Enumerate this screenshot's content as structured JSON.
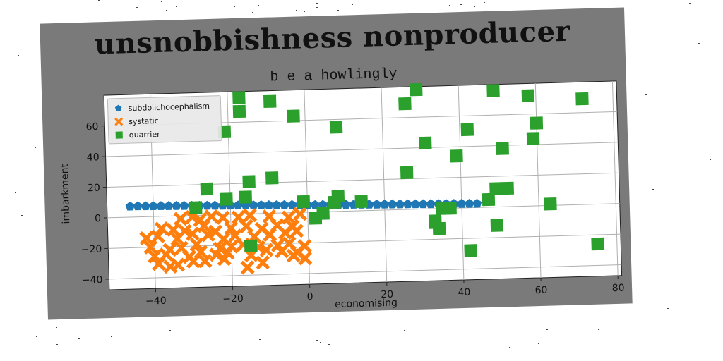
{
  "chart_data": {
    "type": "scatter",
    "title": "unsnobbishness nonproducer",
    "subtitle": "b e a howlingly",
    "xlabel": "economising",
    "ylabel": "imbarkment",
    "xlim": [
      -52,
      81
    ],
    "ylim": [
      -47,
      80
    ],
    "x_ticks": [
      -40,
      -20,
      0,
      20,
      40,
      60,
      80
    ],
    "x_tick_labels": [
      "−40",
      "−20",
      "0",
      "20",
      "40",
      "60",
      "80"
    ],
    "y_ticks": [
      -40,
      -20,
      0,
      20,
      40,
      60
    ],
    "y_tick_labels": [
      "−40",
      "−20",
      "0",
      "20",
      "40",
      "60"
    ],
    "grid": true,
    "legend_position": "top-left",
    "series": [
      {
        "name": "subdolichocephalism",
        "marker": "pentagon",
        "color": "#1f77b4",
        "x": [
          -46,
          -44,
          -42,
          -40,
          -38,
          -36,
          -34,
          -32,
          -30,
          -28,
          -26,
          -24,
          -22,
          -20,
          -18,
          -16,
          -14,
          -12,
          -10,
          -8,
          -6,
          -4,
          -2,
          0,
          2,
          4,
          6,
          8,
          10,
          12,
          14,
          16,
          18,
          20,
          22,
          24,
          26,
          28,
          30,
          32,
          34,
          36,
          38,
          40,
          42,
          44
        ],
        "y": [
          7,
          7,
          6.9,
          6.8,
          6.7,
          6.6,
          6.5,
          6.4,
          6.3,
          6.2,
          6.1,
          6,
          5.9,
          5.8,
          5.7,
          5.6,
          5.5,
          5.4,
          5.3,
          5.2,
          5.1,
          5,
          4.9,
          4.8,
          4.6,
          4.5,
          4.4,
          4.3,
          4.2,
          4.1,
          4,
          3.9,
          3.8,
          3.7,
          3.6,
          3.5,
          3.4,
          3.3,
          3.2,
          3.1,
          3,
          2.9,
          2.8,
          2.7,
          2.6,
          2.5
        ]
      },
      {
        "name": "systatic",
        "marker": "x",
        "color": "#ff7f0e",
        "x": [
          -33,
          -30,
          -28,
          -25,
          -22,
          -18,
          -15,
          -10,
          -5,
          -2,
          -38,
          -35,
          -32,
          -27,
          -24,
          -20,
          -16,
          -12,
          -8,
          -4,
          -42,
          -39,
          -34,
          -30,
          -26,
          -22,
          -19,
          -14,
          -10,
          -6,
          -3,
          -41,
          -36,
          -33,
          -29,
          -23,
          -20,
          -17,
          -13,
          -8,
          -5,
          -1,
          -40,
          -37,
          -31,
          -28,
          -24,
          -21,
          -15,
          -11,
          -7,
          -3,
          -39,
          -36,
          -34,
          -30,
          -27,
          -22,
          -16,
          -12,
          -4,
          -1
        ],
        "y": [
          -2,
          -1,
          -3,
          -1,
          -2,
          -2,
          -1,
          -2,
          -3,
          -1,
          -8,
          -9,
          -10,
          -7,
          -11,
          -9,
          -8,
          -10,
          -8,
          -9,
          -14,
          -13,
          -15,
          -12,
          -13,
          -16,
          -14,
          -15,
          -14,
          -13,
          -12,
          -20,
          -22,
          -21,
          -19,
          -22,
          -21,
          -20,
          -22,
          -21,
          -20,
          -22,
          -26,
          -25,
          -27,
          -24,
          -26,
          -25,
          -27,
          -24,
          -25,
          -26,
          -31,
          -33,
          -32,
          -30,
          -30,
          -29,
          -35,
          -32,
          -28,
          -30
        ]
      },
      {
        "name": "quarrier",
        "marker": "square",
        "color": "#2ca02c",
        "x": [
          -17,
          -17,
          -9,
          -21,
          -3,
          8,
          29,
          26,
          49,
          58,
          72,
          51,
          -26,
          -21,
          -16,
          -15,
          -9,
          -29,
          -1,
          8,
          7,
          4,
          2,
          14,
          26,
          31,
          33,
          34,
          42,
          35,
          39,
          37,
          47,
          49,
          52,
          49,
          33,
          63,
          59,
          60,
          42,
          75,
          -15
        ],
        "y": [
          76,
          67,
          73,
          54,
          63,
          55,
          78,
          69,
          76,
          72,
          69,
          38,
          17,
          10,
          11,
          21,
          23,
          5,
          7,
          10,
          6,
          -1,
          -4,
          6,
          24,
          43,
          -8,
          -13,
          51,
          0,
          34,
          0,
          5,
          12,
          12,
          -12,
          -9,
          1,
          44,
          54,
          -28,
          -26,
          -21
        ]
      }
    ]
  }
}
